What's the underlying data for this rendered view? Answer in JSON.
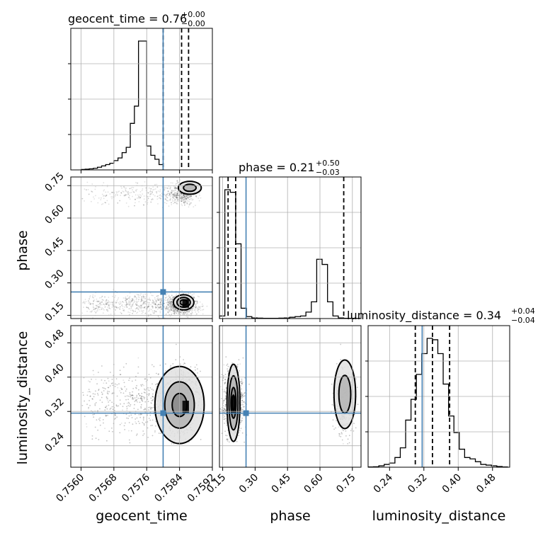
{
  "chart_data": {
    "type": "corner",
    "parameters": [
      "geocent_time",
      "phase",
      "luminosity_distance"
    ],
    "axis_labels": [
      "geocent_time",
      "phase",
      "luminosity_distance"
    ],
    "titles": [
      {
        "text": "geocent_time = 0.76",
        "sup": "+0.00",
        "sub": "−0.00"
      },
      {
        "text": "phase = 0.21",
        "sup": "+0.50",
        "sub": "−0.03"
      },
      {
        "text": "luminosity_distance = 0.34",
        "sup": "+0.04",
        "sub": "−0.04"
      }
    ],
    "ranges": [
      [
        0.75575,
        0.7592
      ],
      [
        0.135,
        0.79
      ],
      [
        0.19,
        0.52
      ]
    ],
    "ticks": [
      {
        "values": [
          0.756,
          0.7568,
          0.7576,
          0.7584,
          0.7592
        ],
        "labels": [
          "0.7560",
          "0.7568",
          "0.7576",
          "0.7584",
          "0.7592"
        ]
      },
      {
        "values": [
          0.15,
          0.3,
          0.45,
          0.6,
          0.75
        ],
        "labels": [
          "0.15",
          "0.30",
          "0.45",
          "0.60",
          "0.75"
        ]
      },
      {
        "values": [
          0.24,
          0.32,
          0.4,
          0.48
        ],
        "labels": [
          "0.24",
          "0.32",
          "0.40",
          "0.48"
        ]
      }
    ],
    "truths": [
      0.758,
      0.258,
      0.316
    ],
    "truth_color": "#4682b4",
    "quantiles": [
      [
        0.758,
        0.75845,
        0.75862
      ],
      [
        0.175,
        0.21,
        0.71
      ],
      [
        0.3,
        0.34,
        0.38
      ]
    ],
    "histograms": [
      {
        "param": "geocent_time",
        "bin_width": 0.0001,
        "start": 0.756,
        "counts": [
          0.3,
          0.5,
          0.8,
          1.2,
          2,
          3,
          4,
          5,
          7,
          9,
          13,
          17,
          35,
          48,
          97,
          97,
          18,
          11,
          8,
          4
        ]
      },
      {
        "param": "phase",
        "bin_width": 0.025,
        "start": 0.135,
        "counts": [
          2,
          100,
          98,
          58,
          8,
          1.5,
          0.5,
          0.3,
          0.2,
          0.2,
          0.2,
          0.3,
          0.5,
          1,
          1.5,
          2,
          5,
          13,
          46,
          42,
          13,
          2,
          0.5,
          0.2,
          0.2,
          0.1
        ]
      },
      {
        "param": "luminosity_distance",
        "bin_width": 0.0125,
        "start": 0.19,
        "counts": [
          0.2,
          0.3,
          1,
          2,
          3,
          7,
          14,
          34,
          49,
          67,
          82,
          93,
          92,
          82,
          60,
          37,
          25,
          13,
          7,
          6,
          4,
          2,
          1.5,
          1,
          0.5,
          0.2
        ]
      }
    ]
  }
}
